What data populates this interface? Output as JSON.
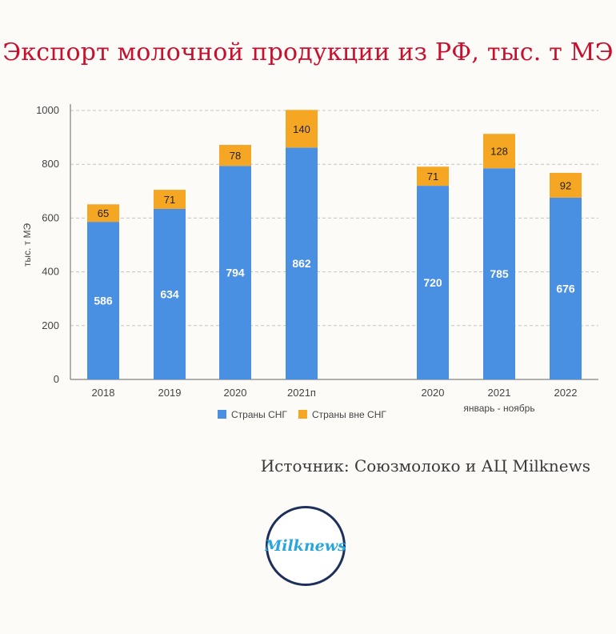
{
  "title": "Экспорт молочной продукции из РФ, тыс. т МЭ",
  "source": "Источник: Союзмолоко и АЦ Milknews",
  "logo_text": "Milknews",
  "colors": {
    "cis": "#4a90e2",
    "non_cis": "#f5a623",
    "title": "#c8102e"
  },
  "chart_data": {
    "type": "bar",
    "stacked": true,
    "ylabel": "тыс. т МЭ",
    "ylim": [
      0,
      1000
    ],
    "yticks": [
      0,
      200,
      400,
      600,
      800,
      1000
    ],
    "grid": true,
    "legend_position": "bottom",
    "categories": [
      "2018",
      "2019",
      "2020",
      "2021п",
      "2020",
      "2021",
      "2022"
    ],
    "group_label": "январь - ноябрь",
    "series": [
      {
        "name": "Страны СНГ",
        "color": "#4a90e2",
        "values": [
          586,
          634,
          794,
          862,
          720,
          785,
          676
        ]
      },
      {
        "name": "Страны вне СНГ",
        "color": "#f5a623",
        "values": [
          65,
          71,
          78,
          140,
          71,
          128,
          92
        ]
      }
    ]
  }
}
